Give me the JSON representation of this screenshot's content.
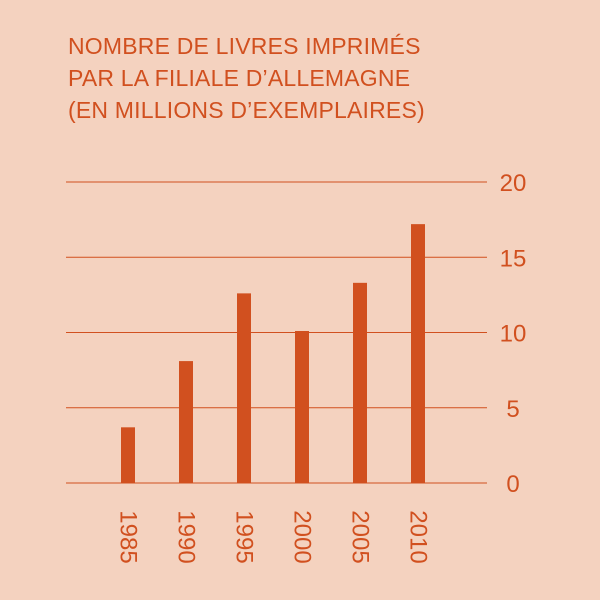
{
  "chart_data": {
    "type": "bar",
    "title_lines": [
      "NOMBRE DE LIVRES IMPRIMÉS",
      "PAR LA FILIALE D’ALLEMAGNE",
      "(EN MILLIONS D’EXEMPLAIRES)"
    ],
    "categories": [
      "1985",
      "1990",
      "1995",
      "2000",
      "2005",
      "2010"
    ],
    "values": [
      3.7,
      8.1,
      12.6,
      10.1,
      13.3,
      17.2
    ],
    "ylim": [
      0,
      20
    ],
    "yticks": [
      "0",
      "5",
      "10",
      "15",
      "20"
    ],
    "grid": true,
    "y_axis_side": "right",
    "x_labels_rotation": "vertical",
    "colors": {
      "background": "#f4d2bf",
      "bar": "#d1501f",
      "text": "#d1501f",
      "grid": "#d1501f"
    }
  }
}
